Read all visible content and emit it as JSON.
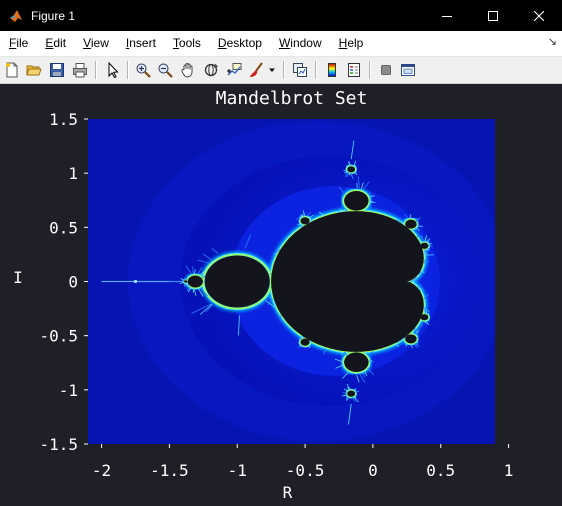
{
  "window": {
    "title": "Figure 1",
    "icon": "matlab-icon",
    "controls": [
      "minimize-icon",
      "maximize-icon",
      "close-icon"
    ]
  },
  "menubar": {
    "items": [
      {
        "label": "File",
        "mnemonic": "F"
      },
      {
        "label": "Edit",
        "mnemonic": "E"
      },
      {
        "label": "View",
        "mnemonic": "V"
      },
      {
        "label": "Insert",
        "mnemonic": "I"
      },
      {
        "label": "Tools",
        "mnemonic": "T"
      },
      {
        "label": "Desktop",
        "mnemonic": "D"
      },
      {
        "label": "Window",
        "mnemonic": "W"
      },
      {
        "label": "Help",
        "mnemonic": "H"
      }
    ],
    "dock_arrow": "↘"
  },
  "toolbar": {
    "buttons": [
      "new-figure-icon",
      "open-file-icon",
      "save-icon",
      "print-icon",
      "edit-plot-arrow-icon",
      "zoom-in-icon",
      "zoom-out-icon",
      "pan-hand-icon",
      "rotate-3d-icon",
      "data-cursor-icon",
      "brush-icon",
      "brush-dropdown-icon",
      "link-plot-icon",
      "insert-colorbar-icon",
      "insert-legend-icon",
      "hide-plot-tools-icon",
      "show-plot-tools-icon"
    ]
  },
  "chart_data": {
    "type": "heatmap",
    "title": "Mandelbrot Set",
    "xlabel": "R",
    "ylabel": "I",
    "xlim": [
      -2.1,
      0.9
    ],
    "ylim": [
      -1.5,
      1.5
    ],
    "x_ticks": [
      -2,
      -1.5,
      -1,
      -0.5,
      0,
      0.5,
      1
    ],
    "x_tick_labels": [
      "-2",
      "-1.5",
      "-1",
      "-0.5",
      "0",
      "0.5",
      "1"
    ],
    "y_ticks": [
      1.5,
      1,
      0.5,
      0,
      -0.5,
      -1,
      -1.5
    ],
    "y_tick_labels": [
      "1.5",
      "1",
      "0.5",
      "0",
      "-0.5",
      "-1",
      "-1.5"
    ],
    "grid": false,
    "colormap": "jet",
    "inside_color": "#14141c",
    "axes_bg": "#1f1f27",
    "text_color": "#ffffff"
  }
}
